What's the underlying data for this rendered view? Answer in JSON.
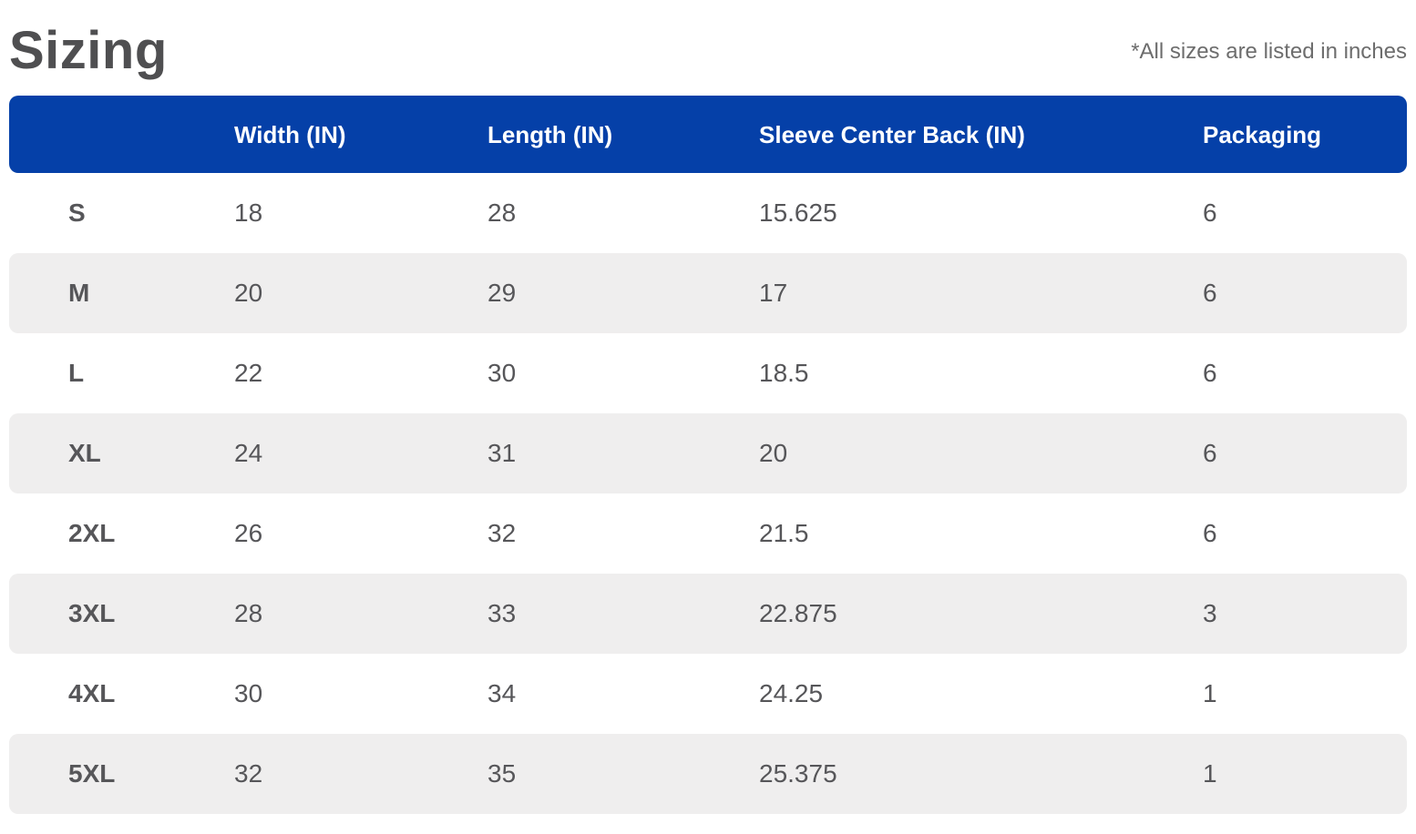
{
  "page": {
    "title": "Sizing",
    "note": "*All sizes are listed in inches"
  },
  "colors": {
    "header_bg": "#0540a8",
    "stripe_bg": "#efeeee",
    "header_text": "#ffffff",
    "body_text": "#565659",
    "title_text": "#4f4f51",
    "note_text": "#6d6d6d"
  },
  "table": {
    "columns": [
      "",
      "Width (IN)",
      "Length (IN)",
      "Sleeve Center Back (IN)",
      "Packaging"
    ],
    "rows": [
      {
        "size": "S",
        "width": "18",
        "length": "28",
        "sleeve": "15.625",
        "packaging": "6"
      },
      {
        "size": "M",
        "width": "20",
        "length": "29",
        "sleeve": "17",
        "packaging": "6"
      },
      {
        "size": "L",
        "width": "22",
        "length": "30",
        "sleeve": "18.5",
        "packaging": "6"
      },
      {
        "size": "XL",
        "width": "24",
        "length": "31",
        "sleeve": "20",
        "packaging": "6"
      },
      {
        "size": "2XL",
        "width": "26",
        "length": "32",
        "sleeve": "21.5",
        "packaging": "6"
      },
      {
        "size": "3XL",
        "width": "28",
        "length": "33",
        "sleeve": "22.875",
        "packaging": "3"
      },
      {
        "size": "4XL",
        "width": "30",
        "length": "34",
        "sleeve": "24.25",
        "packaging": "1"
      },
      {
        "size": "5XL",
        "width": "32",
        "length": "35",
        "sleeve": "25.375",
        "packaging": "1"
      }
    ]
  }
}
